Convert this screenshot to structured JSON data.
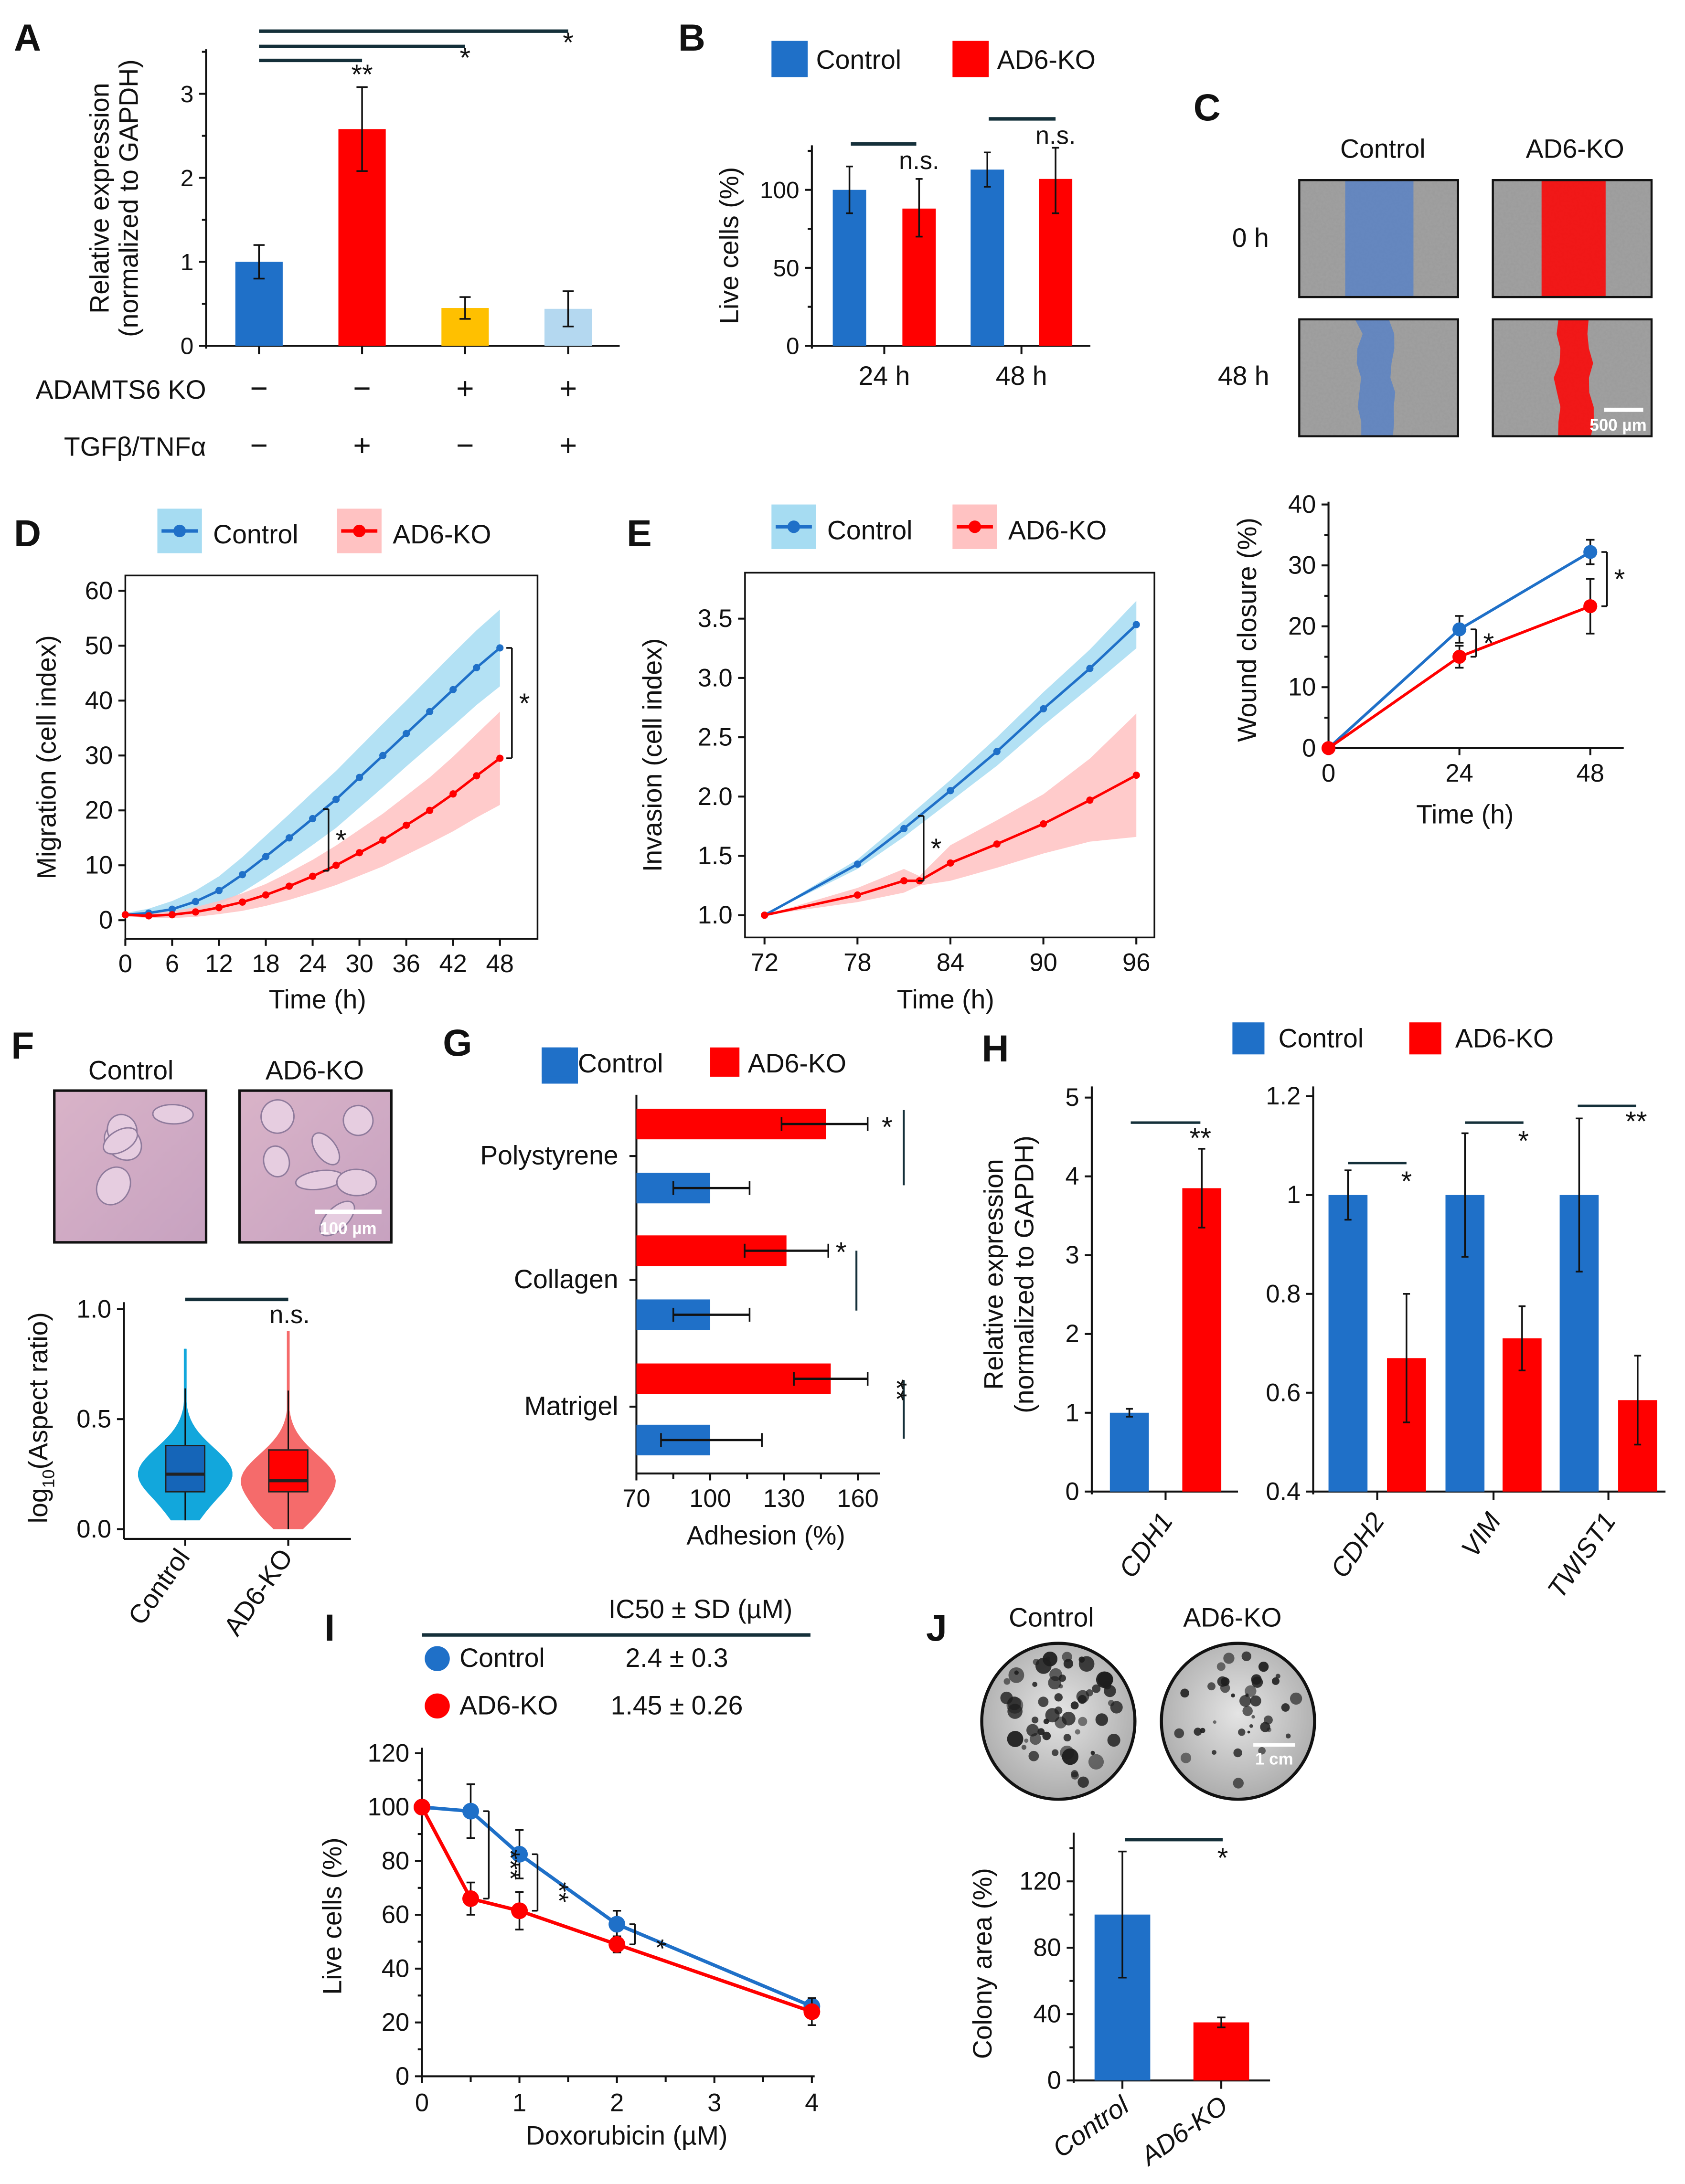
{
  "panel_letters": [
    "A",
    "B",
    "C",
    "D",
    "E",
    "F",
    "G",
    "H",
    "I",
    "J"
  ],
  "colors": {
    "control": "#1f70c8",
    "ko": "#ff0000",
    "control_band": "#a6dcf2",
    "ko_band": "#ffc2c2",
    "gold": "#ffc000",
    "light_blue": "#b4d8f0"
  },
  "chart_data": [
    {
      "panel": "A",
      "type": "bar",
      "ylabel": [
        "Relative expression",
        "(normalized to GAPDH)"
      ],
      "ylim": [
        0,
        3.5
      ],
      "yticks": [
        "0",
        "1",
        "2",
        "3"
      ],
      "values": [
        1.0,
        2.58,
        0.45,
        0.44
      ],
      "errors": [
        [
          0.8,
          1.2
        ],
        [
          2.08,
          3.08
        ],
        [
          0.32,
          0.58
        ],
        [
          0.23,
          0.65
        ]
      ],
      "bar_colors": [
        "#1f70c8",
        "#ff0000",
        "#ffc000",
        "#b4d8f0"
      ],
      "conditions": [
        {
          "label": "ADAMTS6 KO",
          "values": [
            "−",
            "−",
            "+",
            "+"
          ]
        },
        {
          "label": "TGFβ/TNFα",
          "values": [
            "−",
            "+",
            "−",
            "+"
          ]
        }
      ],
      "significance": [
        {
          "from": 0,
          "to": 1,
          "label": "**"
        },
        {
          "from": 0,
          "to": 2,
          "label": "*"
        },
        {
          "from": 0,
          "to": 3,
          "label": "*"
        }
      ]
    },
    {
      "panel": "B",
      "type": "bar",
      "legend": [
        "Control",
        "AD6-KO"
      ],
      "ylabel": "Live cells (%)",
      "ylim": [
        0,
        130
      ],
      "yticks": [
        "0",
        "50",
        "100"
      ],
      "categories": [
        "24 h",
        "48 h"
      ],
      "series": [
        {
          "name": "Control",
          "values": [
            100,
            113
          ],
          "errors": [
            [
              85,
              115
            ],
            [
              102,
              124
            ]
          ]
        },
        {
          "name": "AD6-KO",
          "values": [
            88,
            107
          ],
          "errors": [
            [
              70,
              107
            ],
            [
              85,
              127
            ]
          ]
        }
      ],
      "significance": [
        "n.s.",
        "n.s."
      ]
    },
    {
      "panel": "C",
      "type": "line",
      "image_columns": [
        "Control",
        "AD6-KO"
      ],
      "image_rows": [
        "0 h",
        "48 h"
      ],
      "scale_bar": "500 µm",
      "xlabel": "Time (h)",
      "ylabel": "Wound closure (%)",
      "xticks": [
        "0",
        "24",
        "48"
      ],
      "yticks": [
        "0",
        "10",
        "20",
        "30",
        "40"
      ],
      "xlim": [
        0,
        48
      ],
      "ylim": [
        0,
        40
      ],
      "x": [
        0,
        24,
        48
      ],
      "series": [
        {
          "name": "Control",
          "y": [
            0,
            19.5,
            32.2
          ],
          "sd": [
            0,
            2.2,
            2
          ]
        },
        {
          "name": "AD6-KO",
          "y": [
            0,
            15,
            23.3
          ],
          "sd": [
            0,
            1.8,
            4.5
          ]
        }
      ],
      "significance": [
        {
          "x": 24,
          "label": "*"
        },
        {
          "x": 48,
          "label": "*"
        }
      ]
    },
    {
      "panel": "D",
      "type": "line",
      "legend": [
        "Control",
        "AD6-KO"
      ],
      "xlabel": "Time (h)",
      "ylabel": "Migration (cell index)",
      "xticks": [
        "0",
        "6",
        "12",
        "18",
        "24",
        "30",
        "36",
        "42",
        "48"
      ],
      "yticks": [
        "0",
        "10",
        "20",
        "30",
        "40",
        "50",
        "60"
      ],
      "xlim": [
        0,
        48
      ],
      "ylim": [
        0,
        60
      ],
      "x": [
        0,
        3,
        6,
        9,
        12,
        15,
        18,
        21,
        24,
        27,
        30,
        33,
        36,
        39,
        42,
        45,
        48
      ],
      "series": [
        {
          "name": "Control",
          "y": [
            1,
            1.3,
            2,
            3.4,
            5.4,
            8.3,
            11.6,
            15,
            18.5,
            22,
            26,
            30,
            34,
            38,
            42,
            46,
            49.6
          ],
          "sd": [
            0.3,
            0.8,
            1.5,
            2,
            2.6,
            3.2,
            3.8,
            4.3,
            4.8,
            5.2,
            5.5,
            5.8,
            6,
            6.3,
            6.6,
            6.8,
            7
          ]
        },
        {
          "name": "AD6-KO",
          "y": [
            1,
            0.8,
            1,
            1.5,
            2.3,
            3.3,
            4.6,
            6.2,
            8,
            10,
            12.3,
            14.6,
            17.3,
            20,
            23,
            26.3,
            29.5
          ],
          "sd": [
            0.3,
            0.4,
            0.6,
            0.9,
            1.2,
            1.6,
            2,
            2.5,
            3,
            3.6,
            4.2,
            4.8,
            5.4,
            6,
            6.8,
            7.6,
            8.5
          ]
        }
      ],
      "significance": [
        {
          "x": 25.5,
          "label": "*"
        },
        {
          "x": 49,
          "label": "*"
        }
      ]
    },
    {
      "panel": "E",
      "type": "line",
      "legend": [
        "Control",
        "AD6-KO"
      ],
      "xlabel": "Time (h)",
      "ylabel": "Invasion (cell index)",
      "xticks": [
        "72",
        "78",
        "84",
        "90",
        "96"
      ],
      "yticks": [
        "1.0",
        "1.5",
        "2.0",
        "2.5",
        "3.0",
        "3.5"
      ],
      "xlim": [
        72,
        96
      ],
      "ylim": [
        1.0,
        3.5
      ],
      "series": [
        {
          "name": "Control",
          "x": [
            72,
            78,
            81,
            84,
            87,
            90,
            93,
            96
          ],
          "y": [
            1.0,
            1.43,
            1.73,
            2.05,
            2.38,
            2.74,
            3.08,
            3.45
          ],
          "sd": [
            0,
            0.04,
            0.07,
            0.09,
            0.12,
            0.14,
            0.16,
            0.2
          ]
        },
        {
          "name": "AD6-KO",
          "x": [
            72,
            78,
            81,
            82,
            84,
            87,
            90,
            93,
            96
          ],
          "y": [
            1.0,
            1.17,
            1.29,
            1.29,
            1.44,
            1.6,
            1.77,
            1.97,
            2.18
          ],
          "sd": [
            0,
            0.06,
            0.1,
            0.04,
            0.15,
            0.2,
            0.25,
            0.35,
            0.52
          ]
        }
      ],
      "significance": [
        {
          "x": 82,
          "label": "*"
        }
      ]
    },
    {
      "panel": "F",
      "type": "violin",
      "image_labels": [
        "Control",
        "AD6-KO"
      ],
      "scale_bar": "100 µm",
      "ylabel_parts": [
        "log",
        "10",
        "(Aspect ratio)"
      ],
      "yticks": [
        "0.0",
        "0.5",
        "1.0"
      ],
      "ylim": [
        0,
        1.0
      ],
      "categories": [
        "Control",
        "AD6-KO"
      ],
      "stats": [
        {
          "median": 0.25,
          "q1": 0.17,
          "q3": 0.38,
          "whisker_low": 0.04,
          "whisker_high": 0.64,
          "min": 0.04,
          "max": 0.82
        },
        {
          "median": 0.22,
          "q1": 0.17,
          "q3": 0.36,
          "whisker_low": 0.0,
          "whisker_high": 0.63,
          "min": 0.0,
          "max": 0.9
        }
      ],
      "significance": "n.s."
    },
    {
      "panel": "G",
      "type": "bar",
      "orientation": "horizontal",
      "legend": [
        "Control",
        "AD6-KO"
      ],
      "xlabel": "Adhesion (%)",
      "xticks": [
        "70",
        "100",
        "130",
        "160"
      ],
      "xlim": [
        70,
        172
      ],
      "categories": [
        "Polystyrene",
        "Collagen",
        "Matrigel"
      ],
      "series": [
        {
          "name": "AD6-KO",
          "values": [
            147,
            131,
            149
          ],
          "errors": [
            [
              129,
              164
            ],
            [
              114,
              148
            ],
            [
              134,
              164
            ]
          ]
        },
        {
          "name": "Control",
          "values": [
            100,
            100,
            100
          ],
          "errors": [
            [
              85,
              116
            ],
            [
              85,
              116
            ],
            [
              80,
              121
            ]
          ]
        }
      ],
      "significance": [
        "*",
        "*",
        "**"
      ]
    },
    {
      "panel": "H",
      "type": "bar",
      "legend": [
        "Control",
        "AD6-KO"
      ],
      "ylabel": [
        "Relative expression",
        "(normalized to GAPDH)"
      ],
      "subcharts": [
        {
          "categories": [
            "CDH1"
          ],
          "yticks": [
            "0",
            "1",
            "2",
            "3",
            "4",
            "5"
          ],
          "ylim": [
            0,
            5
          ],
          "control": [
            1.0
          ],
          "control_err": [
            [
              0.95,
              1.05
            ]
          ],
          "ko": [
            3.85
          ],
          "ko_err": [
            [
              3.35,
              4.35
            ]
          ],
          "significance": [
            "**"
          ]
        },
        {
          "categories": [
            "CDH2",
            "VIM",
            "TWIST1"
          ],
          "yticks": [
            "0.4",
            "0.6",
            "0.8",
            "1",
            "1.2"
          ],
          "ylim": [
            0.4,
            1.2
          ],
          "control": [
            1.0,
            1.0,
            1.0
          ],
          "control_err": [
            [
              0.95,
              1.05
            ],
            [
              0.875,
              1.125
            ],
            [
              0.845,
              1.155
            ]
          ],
          "ko": [
            0.67,
            0.71,
            0.585
          ],
          "ko_err": [
            [
              0.54,
              0.8
            ],
            [
              0.645,
              0.775
            ],
            [
              0.495,
              0.675
            ]
          ],
          "significance": [
            "*",
            "*",
            "**"
          ]
        }
      ]
    },
    {
      "panel": "I",
      "type": "line",
      "table": {
        "header": "IC50 ± SD (µM)",
        "rows": [
          {
            "name": "Control",
            "value": "2.4 ± 0.3"
          },
          {
            "name": "AD6-KO",
            "value": "1.45 ± 0.26"
          }
        ]
      },
      "xlabel": "Doxorubicin (µM)",
      "ylabel": "Live cells (%)",
      "xticks": [
        "0",
        "1",
        "2",
        "3",
        "4"
      ],
      "yticks": [
        "0",
        "20",
        "40",
        "60",
        "80",
        "100",
        "120"
      ],
      "xlim": [
        0,
        4
      ],
      "ylim": [
        0,
        120
      ],
      "x": [
        0,
        0.5,
        1,
        2,
        4
      ],
      "series": [
        {
          "name": "Control",
          "y": [
            100,
            98.5,
            82.5,
            56.5,
            26
          ],
          "sd": [
            0,
            10,
            9,
            5,
            3
          ]
        },
        {
          "name": "AD6-KO",
          "y": [
            100,
            66,
            61.5,
            49,
            24
          ],
          "sd": [
            0,
            6,
            7,
            3,
            5
          ]
        }
      ],
      "significance": [
        {
          "x": 0.5,
          "label": "***"
        },
        {
          "x": 1,
          "label": "**"
        },
        {
          "x": 2,
          "label": "*"
        }
      ]
    },
    {
      "panel": "J",
      "type": "bar",
      "image_labels": [
        "Control",
        "AD6-KO"
      ],
      "scale_bar": "1 cm",
      "ylabel": "Colony area (%)",
      "yticks": [
        "0",
        "40",
        "80",
        "120"
      ],
      "ylim": [
        0,
        150
      ],
      "categories": [
        "Control",
        "AD6-KO"
      ],
      "values": [
        100,
        35
      ],
      "errors": [
        [
          62,
          138
        ],
        [
          32,
          38
        ]
      ],
      "significance": "*"
    }
  ]
}
